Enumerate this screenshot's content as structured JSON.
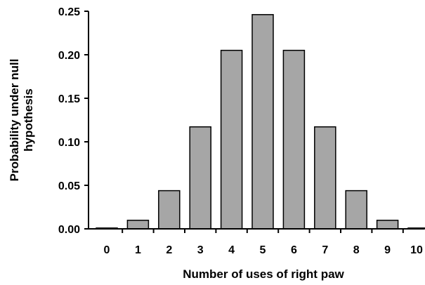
{
  "chart_data": {
    "type": "bar",
    "categories": [
      "0",
      "1",
      "2",
      "3",
      "4",
      "5",
      "6",
      "7",
      "8",
      "9",
      "10"
    ],
    "values": [
      0.001,
      0.0098,
      0.0439,
      0.1172,
      0.2051,
      0.2461,
      0.2051,
      0.1172,
      0.0439,
      0.0098,
      0.001
    ],
    "title": "",
    "xlabel": "Number of uses of right paw",
    "ylabel_lines": [
      "Probability under null",
      "hypothesis"
    ],
    "ylim": [
      0,
      0.25
    ],
    "yticks": [
      "0.00",
      "0.05",
      "0.10",
      "0.15",
      "0.20",
      "0.25"
    ],
    "bar_color": "#a6a6a6",
    "bar_outline": "#000000",
    "grid": false,
    "legend": "none"
  }
}
